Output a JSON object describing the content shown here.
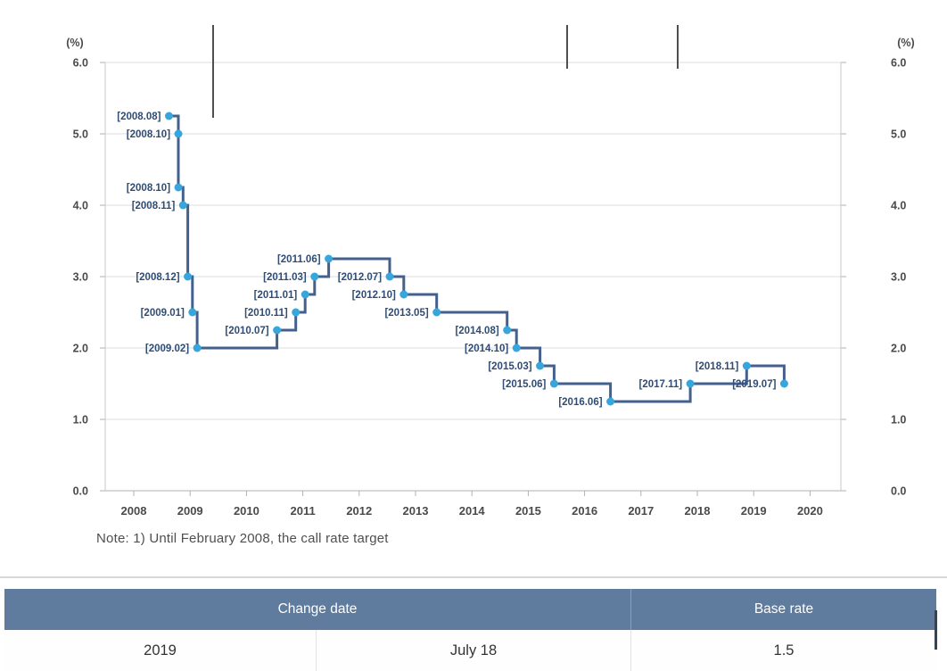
{
  "note": "Note: 1) Until February 2008, the call rate target",
  "chart_data": {
    "type": "step-line",
    "title": "",
    "unit_label": "(%)",
    "ylabel": "(%)",
    "ylim": [
      0,
      6
    ],
    "y_ticks": [
      "0.0",
      "1.0",
      "2.0",
      "3.0",
      "4.0",
      "5.0",
      "6.0"
    ],
    "x_ticks": [
      "2008",
      "2009",
      "2010",
      "2011",
      "2012",
      "2013",
      "2014",
      "2015",
      "2016",
      "2017",
      "2018",
      "2019",
      "2020"
    ],
    "grid": true,
    "dual_y_axis": true,
    "legend_position": "none",
    "series": [
      {
        "name": "Base rate",
        "points": [
          {
            "date": "2008.08",
            "label": "[2008.08]",
            "rate": 5.25
          },
          {
            "date": "2008.10",
            "label": "[2008.10]",
            "rate": 5.0
          },
          {
            "date": "2008.10",
            "label": "[2008.10]",
            "rate": 4.25
          },
          {
            "date": "2008.11",
            "label": "[2008.11]",
            "rate": 4.0
          },
          {
            "date": "2008.12",
            "label": "[2008.12]",
            "rate": 3.0
          },
          {
            "date": "2009.01",
            "label": "[2009.01]",
            "rate": 2.5
          },
          {
            "date": "2009.02",
            "label": "[2009.02]",
            "rate": 2.0
          },
          {
            "date": "2010.07",
            "label": "[2010.07]",
            "rate": 2.25
          },
          {
            "date": "2010.11",
            "label": "[2010.11]",
            "rate": 2.5
          },
          {
            "date": "2011.01",
            "label": "[2011.01]",
            "rate": 2.75
          },
          {
            "date": "2011.03",
            "label": "[2011.03]",
            "rate": 3.0
          },
          {
            "date": "2011.06",
            "label": "[2011.06]",
            "rate": 3.25
          },
          {
            "date": "2012.07",
            "label": "[2012.07]",
            "rate": 3.0
          },
          {
            "date": "2012.10",
            "label": "[2012.10]",
            "rate": 2.75
          },
          {
            "date": "2013.05",
            "label": "[2013.05]",
            "rate": 2.5
          },
          {
            "date": "2014.08",
            "label": "[2014.08]",
            "rate": 2.25
          },
          {
            "date": "2014.10",
            "label": "[2014.10]",
            "rate": 2.0
          },
          {
            "date": "2015.03",
            "label": "[2015.03]",
            "rate": 1.75
          },
          {
            "date": "2015.06",
            "label": "[2015.06]",
            "rate": 1.5
          },
          {
            "date": "2016.06",
            "label": "[2016.06]",
            "rate": 1.25
          },
          {
            "date": "2017.11",
            "label": "[2017.11]",
            "rate": 1.5
          },
          {
            "date": "2018.11",
            "label": "[2018.11]",
            "rate": 1.75
          },
          {
            "date": "2019.07",
            "label": "[2019.07]",
            "rate": 1.5
          }
        ]
      }
    ],
    "colors": {
      "line": "#44618e",
      "marker": "#36a6dc",
      "label_text": "#2f4d74",
      "grid": "#dddddd",
      "axis": "#c8c8c8",
      "baseline": "#b0b0b0",
      "tick_text": "#4a4a4a",
      "artifact": "#4f4f4f"
    }
  },
  "table": {
    "headers": [
      "Change date",
      "Base rate"
    ],
    "row": [
      "2019",
      "July 18",
      "1.5"
    ],
    "header_bg": "#5f7b9d",
    "header_text_color": "#ffffff"
  }
}
